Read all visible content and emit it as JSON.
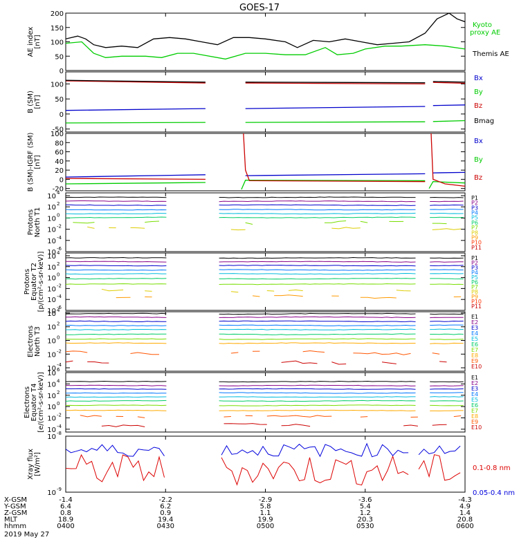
{
  "title": "GOES-17",
  "chart_data": [
    {
      "id": "ae",
      "type": "line",
      "ylabel": [
        "AE index",
        "[nT]"
      ],
      "ylim": [
        0,
        200
      ],
      "yticks": [
        "0",
        "50",
        "100",
        "150",
        "200"
      ],
      "yscale": "linear",
      "series": [
        {
          "name": "Kyoto",
          "name2": "proxy AE",
          "color": "#00cc00",
          "x": [
            0,
            4,
            7,
            10,
            14,
            20,
            24,
            28,
            32,
            40,
            45,
            50,
            55,
            60,
            65,
            68,
            72,
            75,
            80,
            84,
            90,
            95,
            100
          ],
          "y": [
            95,
            100,
            60,
            45,
            50,
            50,
            45,
            60,
            60,
            40,
            60,
            60,
            55,
            55,
            80,
            55,
            60,
            75,
            85,
            85,
            90,
            85,
            75
          ]
        },
        {
          "name": "Themis AE",
          "color": "#000000",
          "x": [
            0,
            3,
            5,
            7,
            10,
            14,
            18,
            22,
            26,
            30,
            34,
            38,
            42,
            46,
            50,
            55,
            58,
            62,
            66,
            70,
            74,
            78,
            82,
            86,
            90,
            93,
            96,
            98,
            100
          ],
          "y": [
            110,
            120,
            110,
            90,
            80,
            85,
            80,
            110,
            115,
            110,
            100,
            90,
            115,
            115,
            110,
            100,
            80,
            105,
            100,
            110,
            100,
            90,
            95,
            100,
            130,
            180,
            200,
            180,
            170
          ]
        }
      ]
    },
    {
      "id": "bsm",
      "type": "line",
      "ylabel": [
        "B (SM)",
        "[nT]"
      ],
      "ylim": [
        -60,
        140
      ],
      "yticks": [
        "-50",
        "0",
        "50",
        "100"
      ],
      "ytickvals": [
        -50,
        0,
        50,
        100
      ],
      "yscale": "linear",
      "series": [
        {
          "name": "Bx",
          "color": "#0000cc",
          "segments": [
            [
              [
                0,
                12
              ],
              [
                35,
                18
              ]
            ],
            [
              [
                45,
                18
              ],
              [
                90,
                25
              ]
            ],
            [
              [
                92,
                28
              ],
              [
                100,
                30
              ]
            ]
          ]
        },
        {
          "name": "By",
          "color": "#00cc00",
          "segments": [
            [
              [
                0,
                -30
              ],
              [
                35,
                -28
              ]
            ],
            [
              [
                45,
                -28
              ],
              [
                90,
                -26
              ]
            ],
            [
              [
                92,
                -25
              ],
              [
                100,
                -22
              ]
            ]
          ]
        },
        {
          "name": "Bz",
          "color": "#cc0000",
          "segments": [
            [
              [
                0,
                110
              ],
              [
                35,
                103
              ]
            ],
            [
              [
                45,
                103
              ],
              [
                90,
                100
              ]
            ],
            [
              [
                92,
                105
              ],
              [
                100,
                102
              ]
            ]
          ]
        },
        {
          "name": "Bmag",
          "color": "#000000",
          "segments": [
            [
              [
                0,
                112
              ],
              [
                35,
                106
              ]
            ],
            [
              [
                45,
                106
              ],
              [
                90,
                104
              ]
            ],
            [
              [
                92,
                108
              ],
              [
                100,
                106
              ]
            ]
          ]
        }
      ]
    },
    {
      "id": "dbsm",
      "type": "line",
      "ylabel": [
        "B (SM)-IGRF (SM)",
        "[nT]"
      ],
      "ylim": [
        -25,
        100
      ],
      "yticks": [
        "-20",
        "0",
        "20",
        "40",
        "60",
        "80",
        "100"
      ],
      "ytickvals": [
        -20,
        0,
        20,
        40,
        60,
        80,
        100
      ],
      "yscale": "linear",
      "series": [
        {
          "name": "Bx",
          "color": "#0000cc",
          "segments": [
            [
              [
                0,
                5
              ],
              [
                35,
                10
              ]
            ],
            [
              [
                45,
                8
              ],
              [
                90,
                12
              ]
            ],
            [
              [
                92,
                14
              ],
              [
                100,
                15
              ]
            ]
          ]
        },
        {
          "name": "By",
          "color": "#00cc00",
          "segments": [
            [
              [
                0,
                -10
              ],
              [
                35,
                -7
              ]
            ],
            [
              [
                44,
                -22
              ],
              [
                45,
                -2
              ],
              [
                90,
                -3
              ]
            ],
            [
              [
                91,
                -20
              ],
              [
                92,
                -5
              ],
              [
                100,
                -8
              ]
            ]
          ]
        },
        {
          "name": "Bz",
          "color": "#cc0000",
          "segments": [
            [
              [
                0,
                2
              ],
              [
                35,
                0
              ]
            ],
            [
              [
                44.5,
                100
              ],
              [
                45,
                20
              ],
              [
                46,
                -3
              ],
              [
                90,
                -5
              ]
            ],
            [
              [
                91.5,
                100
              ],
              [
                92,
                0
              ],
              [
                95,
                -10
              ],
              [
                100,
                -15
              ]
            ]
          ]
        }
      ]
    },
    {
      "id": "pt1",
      "type": "line",
      "ylabel": [
        "Protons",
        "North T1"
      ],
      "ylim": [
        -6,
        4.5
      ],
      "yticks": [
        "10",
        "10",
        "10",
        "10",
        "10",
        "10"
      ],
      "yexps": [
        "4",
        "2",
        "0",
        "-2",
        "-4",
        "-6"
      ],
      "ytickvals": [
        4,
        2,
        0,
        -2,
        -4,
        -6
      ],
      "yscale": "log",
      "channels": [
        "P1",
        "P2",
        "P3",
        "P4",
        "P5",
        "P6",
        "P7",
        "P8",
        "P9",
        "P10",
        "P11"
      ],
      "channel_colors": [
        "#000000",
        "#880088",
        "#0000cc",
        "#0077ff",
        "#00bbdd",
        "#00cc66",
        "#77dd00",
        "#ddcc00",
        "#ff9900",
        "#ff3300",
        "#cc0000"
      ],
      "levels": [
        3.7,
        3.0,
        2.3,
        1.5,
        0.8,
        0.1,
        -0.8,
        -1.9,
        -3.3,
        -4.5,
        -5.5
      ],
      "visible": 8
    },
    {
      "id": "pt2",
      "type": "line",
      "ylabel": [
        "Protons",
        "Equator T2",
        "[p/(cm²-s-sr-keV)]"
      ],
      "ylim": [
        -6,
        4.5
      ],
      "yticks": [
        "10",
        "10",
        "10",
        "10",
        "10",
        "10"
      ],
      "yexps": [
        "4",
        "2",
        "0",
        "-2",
        "-4",
        "-6"
      ],
      "ytickvals": [
        4,
        2,
        0,
        -2,
        -4,
        -6
      ],
      "yscale": "log",
      "channels": [
        "P1",
        "P2",
        "P3",
        "P4",
        "P5",
        "P6",
        "P7",
        "P8",
        "P9",
        "P10",
        "P11"
      ],
      "channel_colors": [
        "#000000",
        "#880088",
        "#0000cc",
        "#0077ff",
        "#00bbdd",
        "#00cc66",
        "#77dd00",
        "#ddcc00",
        "#ff9900",
        "#ff3300",
        "#cc0000"
      ],
      "levels": [
        3.6,
        2.9,
        2.2,
        1.4,
        0.7,
        -0.2,
        -1.2,
        -2.4,
        -3.5,
        -4.6,
        -5.6
      ],
      "visible": 9
    },
    {
      "id": "et3",
      "type": "line",
      "ylabel": [
        "Electrons",
        "North T3"
      ],
      "ylim": [
        -4.5,
        4.2
      ],
      "yticks": [
        "10",
        "10",
        "10",
        "10",
        "10"
      ],
      "yexps": [
        "4",
        "2",
        "0",
        "-2",
        "-4"
      ],
      "ytickvals": [
        4,
        2,
        0,
        -2,
        -4
      ],
      "yscale": "log",
      "channels": [
        "E1",
        "E2",
        "E3",
        "E4",
        "E5",
        "E6",
        "E7",
        "E8",
        "E9",
        "E10"
      ],
      "channel_colors": [
        "#000000",
        "#880088",
        "#0000cc",
        "#0077ff",
        "#00bbdd",
        "#00cc66",
        "#77dd00",
        "#ffaa00",
        "#ff5500",
        "#cc0000"
      ],
      "levels": [
        3.9,
        3.4,
        2.8,
        2.2,
        1.6,
        0.9,
        0.2,
        -0.4,
        -1.8,
        -3.2
      ],
      "visible": 10
    },
    {
      "id": "et4",
      "type": "line",
      "ylabel": [
        "Electrons",
        "Equator T4",
        "[e/(cm²-s-sr-keV)]"
      ],
      "ylim": [
        -4.5,
        6
      ],
      "yticks": [
        "10",
        "10",
        "10",
        "10",
        "10",
        "10"
      ],
      "yexps": [
        "6",
        "4",
        "2",
        "0",
        "-2",
        "-4"
      ],
      "ytickvals": [
        6,
        4,
        2,
        0,
        -2,
        -4
      ],
      "yscale": "log",
      "channels": [
        "E1",
        "E2",
        "E3",
        "E4",
        "E5",
        "E6",
        "E7",
        "E8",
        "E9",
        "E10"
      ],
      "channel_colors": [
        "#000000",
        "#880088",
        "#0000cc",
        "#0077ff",
        "#00bbdd",
        "#00cc66",
        "#77dd00",
        "#ffaa00",
        "#ff5500",
        "#cc0000"
      ],
      "levels": [
        4.4,
        3.7,
        3.1,
        2.4,
        1.7,
        1.0,
        0.2,
        -0.7,
        -1.8,
        -3.3
      ],
      "visible": 10
    },
    {
      "id": "xray",
      "type": "line",
      "ylabel": [
        "Xray flux",
        "[W/m²]"
      ],
      "ylim": [
        -9,
        -8
      ],
      "yticks": [
        "10",
        "10"
      ],
      "yexps": [
        "-8",
        "-9"
      ],
      "ytickvals": [
        -8,
        -9
      ],
      "yscale": "log",
      "series": [
        {
          "name": "0.1-0.8 nm",
          "color": "#dd0000",
          "center": -8.6
        },
        {
          "name": "0.05-0.4 nm",
          "color": "#0000dd",
          "center": -8.25
        }
      ]
    }
  ],
  "xaxis": {
    "tick_positions": [
      0,
      25,
      50,
      75,
      100
    ],
    "rows": [
      {
        "label": "X-GSM",
        "values": [
          "-1.4",
          "-2.2",
          "-2.9",
          "-3.6",
          "-4.3"
        ]
      },
      {
        "label": "Y-GSM",
        "values": [
          "6.4",
          "6.2",
          "5.8",
          "5.4",
          "4.9"
        ]
      },
      {
        "label": "Z-GSM",
        "values": [
          "0.8",
          "0.9",
          "1.1",
          "1.2",
          "1.4"
        ]
      },
      {
        "label": "MLT",
        "values": [
          "18.9",
          "19.4",
          "19.9",
          "20.3",
          "20.8"
        ]
      },
      {
        "label": "hhmm",
        "values": [
          "0400",
          "0430",
          "0500",
          "0530",
          "0600"
        ]
      }
    ],
    "date": "2019 May 27"
  }
}
